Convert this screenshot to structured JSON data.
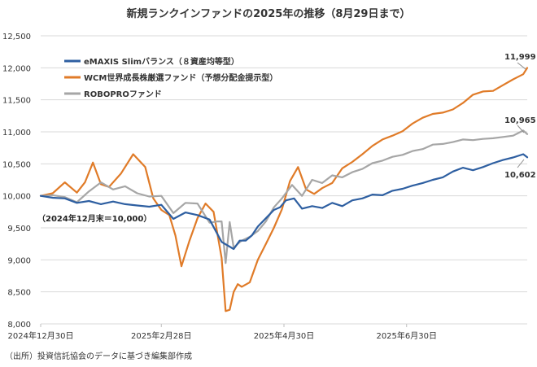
{
  "chart_data": {
    "type": "line",
    "title": "新規ランクインファンドの2025年の推移（8月29日まで）",
    "ylim": [
      8000,
      12500
    ],
    "y_ticks": [
      "8,000",
      "8,500",
      "9,000",
      "9,500",
      "10,000",
      "10,500",
      "11,000",
      "11,500",
      "12,000",
      "12,500"
    ],
    "x_ticks": [
      "2024年12月30日",
      "2025年2月28日",
      "2025年4月30日",
      "2025年6月30日"
    ],
    "x_tick_days": [
      0,
      60,
      121,
      182
    ],
    "x_range_days": [
      0,
      242
    ],
    "base_note": "（2024年12月末＝10,000）",
    "source": "（出所）投資信託協会のデータに基づき編集部作成",
    "series": [
      {
        "name": "eMAXIS Slimバランス（８資産均等型）",
        "color": "#2e5fa1",
        "end_label": "10,602",
        "days": [
          0,
          6,
          12,
          18,
          24,
          30,
          36,
          42,
          48,
          54,
          60,
          66,
          72,
          78,
          84,
          90,
          96,
          99,
          102,
          105,
          108,
          112,
          116,
          119,
          122,
          126,
          130,
          135,
          140,
          145,
          150,
          155,
          160,
          165,
          170,
          175,
          180,
          185,
          190,
          195,
          200,
          205,
          210,
          215,
          220,
          225,
          230,
          235,
          240,
          242
        ],
        "values": [
          10000,
          9970,
          9960,
          9890,
          9920,
          9870,
          9910,
          9870,
          9850,
          9830,
          9860,
          9640,
          9740,
          9700,
          9630,
          9280,
          9170,
          9300,
          9300,
          9380,
          9520,
          9650,
          9780,
          9820,
          9930,
          9960,
          9800,
          9840,
          9810,
          9890,
          9840,
          9930,
          9960,
          10020,
          10010,
          10080,
          10110,
          10160,
          10200,
          10250,
          10290,
          10380,
          10440,
          10400,
          10450,
          10510,
          10560,
          10600,
          10650,
          10602
        ]
      },
      {
        "name": "WCM世界成長株厳選ファンド（予想分配金提示型）",
        "color": "#e07b28",
        "end_label": "11,999",
        "days": [
          0,
          6,
          12,
          18,
          22,
          26,
          30,
          34,
          40,
          46,
          52,
          56,
          60,
          64,
          67,
          70,
          74,
          78,
          82,
          86,
          90,
          92,
          94,
          96,
          98,
          100,
          104,
          108,
          112,
          116,
          120,
          124,
          128,
          132,
          136,
          140,
          145,
          150,
          155,
          160,
          165,
          170,
          175,
          180,
          185,
          190,
          195,
          200,
          205,
          210,
          215,
          220,
          225,
          230,
          235,
          240,
          242
        ],
        "values": [
          10000,
          10040,
          10210,
          10050,
          10210,
          10520,
          10180,
          10140,
          10350,
          10650,
          10450,
          9960,
          9780,
          9700,
          9380,
          8900,
          9300,
          9650,
          9880,
          9750,
          9030,
          8200,
          8220,
          8500,
          8620,
          8580,
          8650,
          9000,
          9250,
          9500,
          9790,
          10230,
          10450,
          10100,
          10030,
          10120,
          10200,
          10430,
          10530,
          10650,
          10780,
          10880,
          10940,
          11010,
          11130,
          11220,
          11280,
          11300,
          11350,
          11450,
          11580,
          11630,
          11640,
          11730,
          11820,
          11900,
          11999
        ]
      },
      {
        "name": "ROBOPROファンド",
        "color": "#a6a6a6",
        "end_label": "10,965",
        "days": [
          0,
          6,
          12,
          18,
          24,
          30,
          36,
          42,
          48,
          54,
          60,
          66,
          72,
          78,
          84,
          88,
          90,
          92,
          94,
          96,
          98,
          100,
          104,
          108,
          112,
          116,
          120,
          125,
          130,
          135,
          140,
          145,
          150,
          155,
          160,
          165,
          170,
          175,
          180,
          185,
          190,
          195,
          200,
          205,
          210,
          215,
          220,
          225,
          230,
          235,
          240,
          242
        ],
        "values": [
          10000,
          10010,
          9980,
          9900,
          10070,
          10210,
          10100,
          10150,
          10040,
          9990,
          10000,
          9730,
          9890,
          9880,
          9580,
          9600,
          9600,
          8950,
          9590,
          9190,
          9250,
          9300,
          9360,
          9450,
          9600,
          9820,
          9960,
          10170,
          10000,
          10250,
          10200,
          10320,
          10290,
          10370,
          10420,
          10510,
          10550,
          10610,
          10640,
          10700,
          10730,
          10800,
          10810,
          10840,
          10880,
          10870,
          10890,
          10900,
          10920,
          10940,
          11020,
          10965
        ]
      }
    ]
  }
}
